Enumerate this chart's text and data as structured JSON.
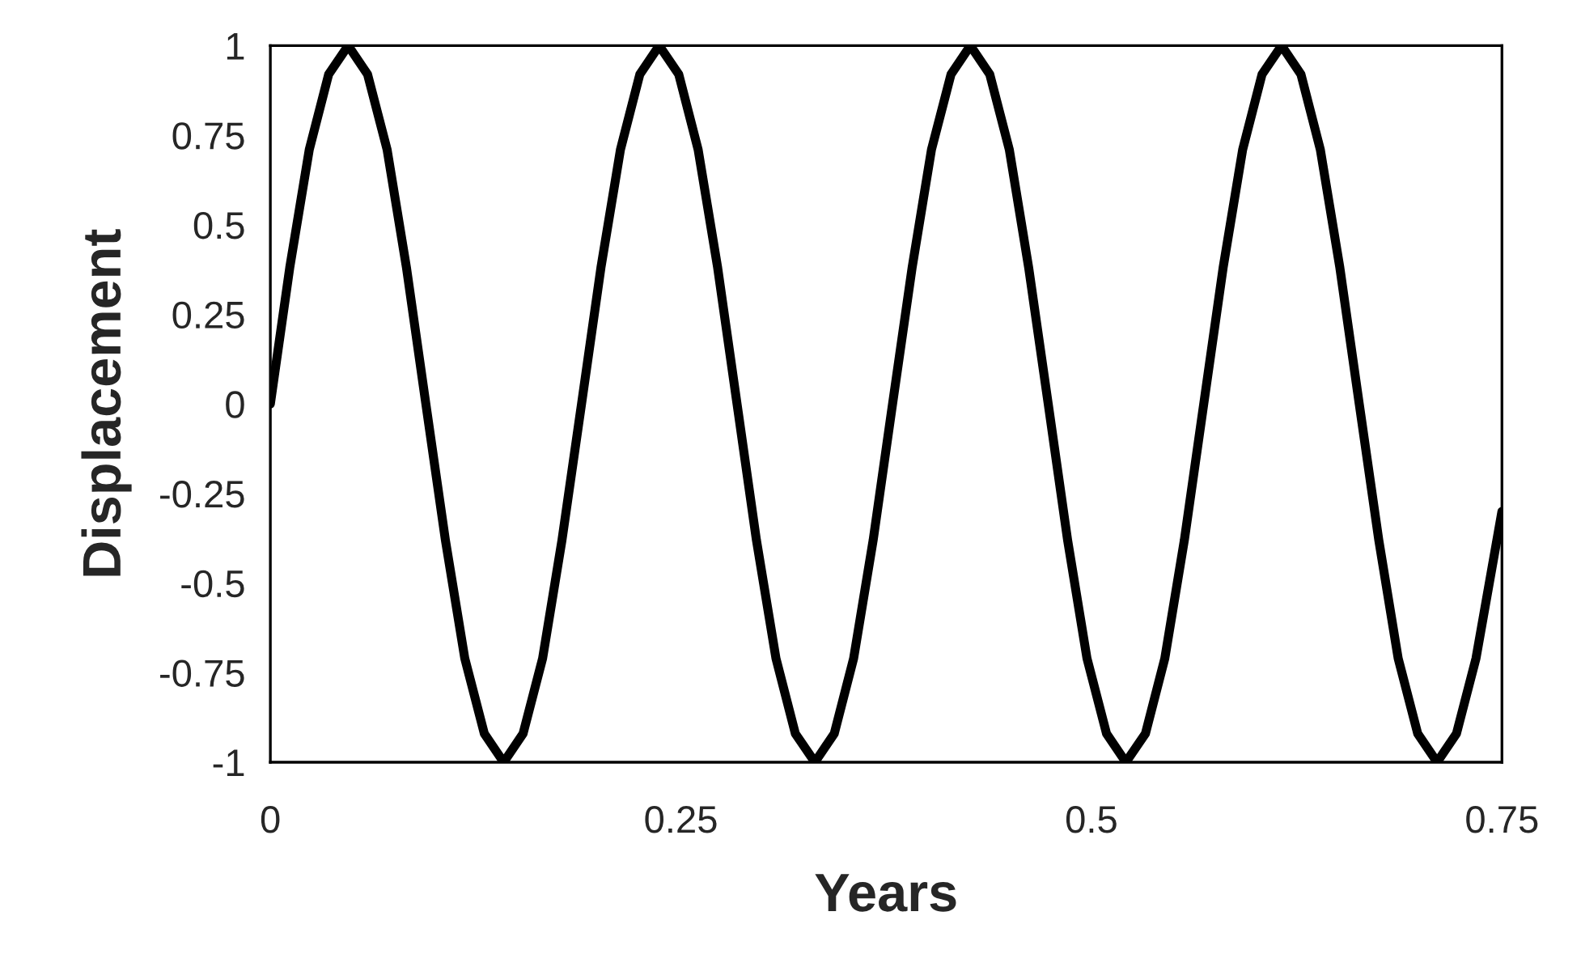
{
  "chart_data": {
    "type": "line",
    "xlabel": "Years",
    "ylabel": "Displacement",
    "xlim": [
      0,
      0.75
    ],
    "xticks": [
      0,
      0.25,
      0.5,
      0.75
    ],
    "ylim": [
      -1,
      1
    ],
    "yticks": [
      1,
      0.75,
      0.5,
      0.25,
      0,
      -0.25,
      -0.5,
      -0.75,
      -1
    ],
    "grid": false,
    "legend": false,
    "marker": "none",
    "line_style": "solid",
    "series": [
      {
        "color": "#000000",
        "x": [
          0,
          0.0118,
          0.0237,
          0.0355,
          0.0474,
          0.0592,
          0.0711,
          0.0829,
          0.0947,
          0.1066,
          0.1184,
          0.1303,
          0.1421,
          0.1539,
          0.1658,
          0.1776,
          0.1895,
          0.2013,
          0.2132,
          0.225,
          0.2368,
          0.2487,
          0.2605,
          0.2724,
          0.2842,
          0.296,
          0.3079,
          0.3197,
          0.3316,
          0.3434,
          0.3552,
          0.3671,
          0.3789,
          0.3908,
          0.4026,
          0.4145,
          0.4263,
          0.4381,
          0.45,
          0.4618,
          0.4737,
          0.4855,
          0.4973,
          0.5092,
          0.521,
          0.5329,
          0.5447,
          0.5566,
          0.5684,
          0.5802,
          0.5921,
          0.6039,
          0.6158,
          0.6276,
          0.6394,
          0.6513,
          0.6631,
          0.675,
          0.6868,
          0.6987,
          0.7105,
          0.7223,
          0.7342,
          0.75
        ],
        "values": [
          0,
          0.38,
          0.71,
          0.92,
          1,
          0.92,
          0.71,
          0.38,
          0,
          -0.38,
          -0.71,
          -0.92,
          -1,
          -0.92,
          -0.71,
          -0.38,
          0,
          0.38,
          0.71,
          0.92,
          1,
          0.92,
          0.71,
          0.38,
          0,
          -0.38,
          -0.71,
          -0.92,
          -1,
          -0.92,
          -0.71,
          -0.38,
          0,
          0.38,
          0.71,
          0.92,
          1,
          0.92,
          0.71,
          0.38,
          0,
          -0.38,
          -0.71,
          -0.92,
          -1,
          -0.92,
          -0.71,
          -0.38,
          0,
          0.38,
          0.71,
          0.92,
          1,
          0.92,
          0.71,
          0.38,
          0,
          -0.38,
          -0.71,
          -0.92,
          -1,
          -0.92,
          -0.71,
          -0.3
        ]
      }
    ]
  }
}
